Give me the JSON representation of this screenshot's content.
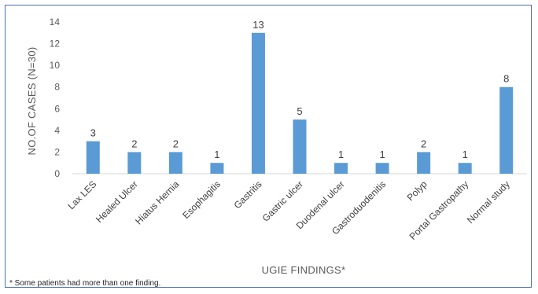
{
  "chart_data": {
    "type": "bar",
    "categories": [
      "Lax LES",
      "Healed Ulcer",
      "Hiatus Hernia",
      "Esophagitis",
      "Gastritis",
      "Gastric ulcer",
      "Duodenal ulcer",
      "Gastroduodenitis",
      "Polyp",
      "Portal Gastropathy",
      "Normal study"
    ],
    "values": [
      3,
      2,
      2,
      1,
      13,
      5,
      1,
      1,
      2,
      1,
      8
    ],
    "title": "",
    "xlabel": "UGIE FINDINGS*",
    "ylabel": "NO.OF CASES (N=30)",
    "ylim": [
      0,
      14
    ],
    "yticks": [
      0,
      2,
      4,
      6,
      8,
      10,
      12,
      14
    ],
    "grid": false,
    "legend": "none",
    "data_labels": true,
    "bar_color": "#5b9bd5",
    "footnote": "* Some patients had more than one finding."
  }
}
